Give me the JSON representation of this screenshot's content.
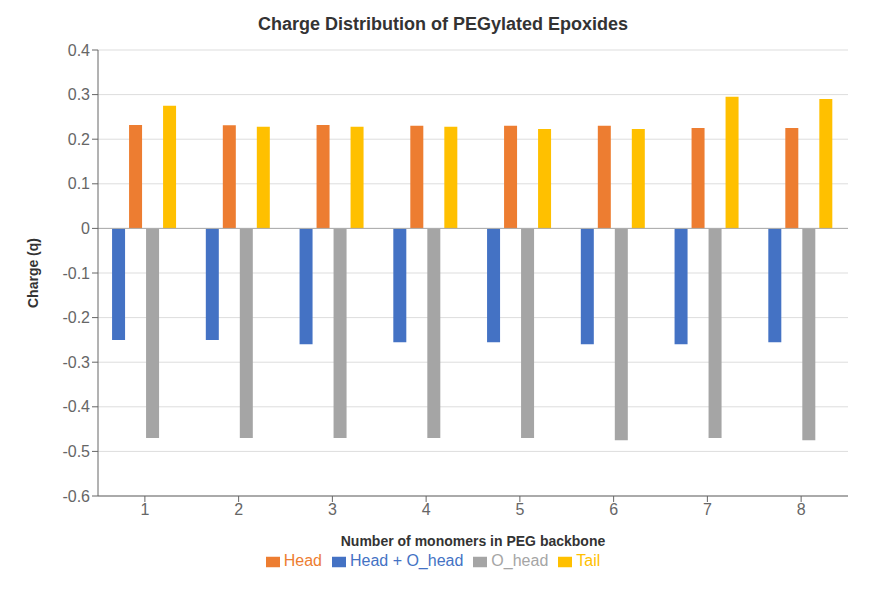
{
  "chart_data": {
    "type": "bar",
    "title": "Charge Distribution of PEGylated Epoxides",
    "xlabel": "Number of monomers in PEG backbone",
    "ylabel": "Charge (q)",
    "categories": [
      "1",
      "2",
      "3",
      "4",
      "5",
      "6",
      "7",
      "8"
    ],
    "series": [
      {
        "name": "Head + O_head",
        "color": "#4472C4",
        "values": [
          -0.25,
          -0.25,
          -0.26,
          -0.255,
          -0.255,
          -0.26,
          -0.26,
          -0.255
        ]
      },
      {
        "name": "Head",
        "color": "#ED7D31",
        "values": [
          0.232,
          0.231,
          0.232,
          0.23,
          0.23,
          0.23,
          0.225,
          0.225
        ]
      },
      {
        "name": "O_head",
        "color": "#A5A5A5",
        "values": [
          -0.47,
          -0.47,
          -0.47,
          -0.47,
          -0.47,
          -0.475,
          -0.47,
          -0.475
        ]
      },
      {
        "name": "Tail",
        "color": "#FFC000",
        "values": [
          0.275,
          0.228,
          0.228,
          0.228,
          0.223,
          0.223,
          0.295,
          0.29
        ]
      }
    ],
    "ylim": [
      -0.6,
      0.4
    ],
    "yticks": [
      -0.6,
      -0.5,
      -0.4,
      -0.3,
      -0.2,
      -0.1,
      0,
      0.1,
      0.2,
      0.3,
      0.4
    ],
    "grid": true,
    "legend": "bottom"
  }
}
